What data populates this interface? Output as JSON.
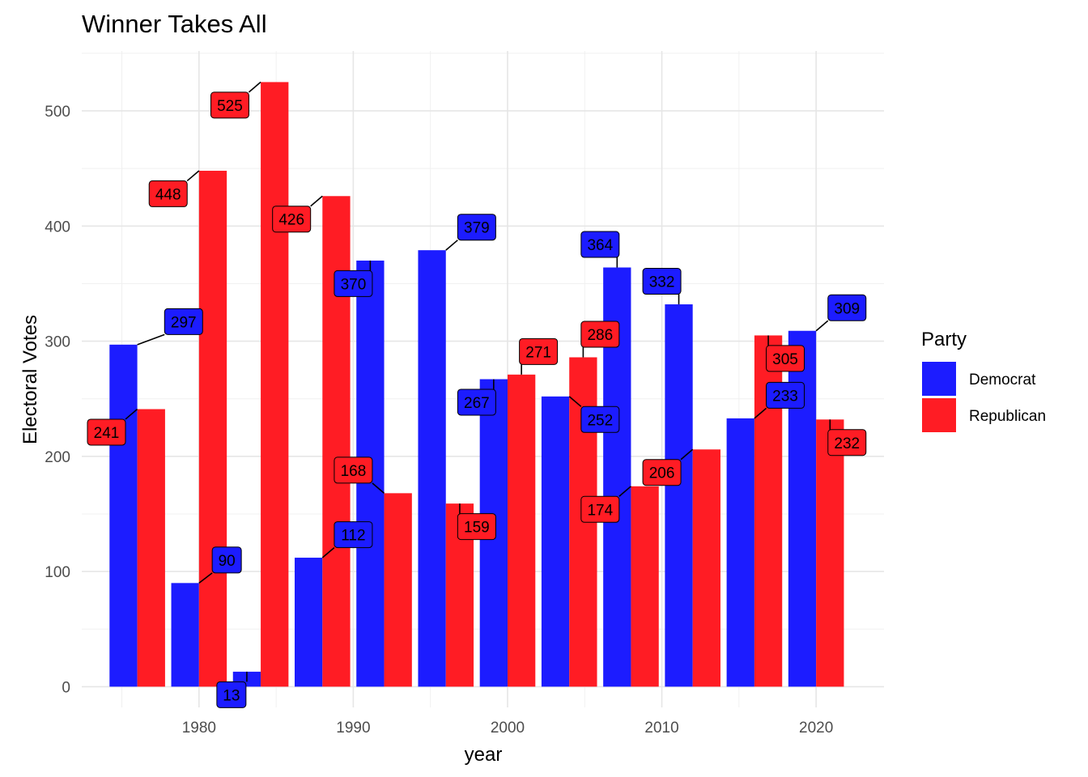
{
  "chart_data": {
    "type": "bar",
    "title": "Winner Takes All",
    "xlabel": "year",
    "ylabel": "Electoral Votes",
    "xlim": [
      1972.4,
      2024.4
    ],
    "ylim": [
      -18,
      552
    ],
    "x_ticks": [
      1980,
      1990,
      2000,
      2010,
      2020
    ],
    "y_ticks": [
      0,
      100,
      200,
      300,
      400,
      500
    ],
    "grid": true,
    "legend": {
      "title": "Party",
      "position": "right"
    },
    "categories": [
      1976,
      1980,
      1984,
      1988,
      1992,
      1996,
      2000,
      2004,
      2008,
      2012,
      2016,
      2020
    ],
    "series": [
      {
        "name": "Democrat",
        "color": "#1c1cff",
        "values": [
          297,
          90,
          13,
          112,
          370,
          379,
          267,
          252,
          364,
          332,
          233,
          309
        ]
      },
      {
        "name": "Republican",
        "color": "#ff1c24",
        "values": [
          241,
          448,
          525,
          426,
          168,
          159,
          271,
          286,
          174,
          206,
          305,
          232
        ]
      }
    ],
    "data_labels": [
      {
        "series": "Democrat",
        "x": 1976,
        "text": "297",
        "label_x": 1979.0,
        "label_y": 317
      },
      {
        "series": "Democrat",
        "x": 1980,
        "text": "90",
        "label_x": 1981.8,
        "label_y": 110
      },
      {
        "series": "Democrat",
        "x": 1984,
        "text": "13",
        "label_x": 1982.1,
        "label_y": -7
      },
      {
        "series": "Democrat",
        "x": 1988,
        "text": "112",
        "label_x": 1990.0,
        "label_y": 132
      },
      {
        "series": "Democrat",
        "x": 1992,
        "text": "370",
        "label_x": 1990.0,
        "label_y": 350
      },
      {
        "series": "Democrat",
        "x": 1996,
        "text": "379",
        "label_x": 1998.0,
        "label_y": 399
      },
      {
        "series": "Democrat",
        "x": 2000,
        "text": "267",
        "label_x": 1998.0,
        "label_y": 247
      },
      {
        "series": "Democrat",
        "x": 2004,
        "text": "252",
        "label_x": 2006.0,
        "label_y": 232
      },
      {
        "series": "Democrat",
        "x": 2008,
        "text": "364",
        "label_x": 2006.0,
        "label_y": 384
      },
      {
        "series": "Democrat",
        "x": 2012,
        "text": "332",
        "label_x": 2010.0,
        "label_y": 352
      },
      {
        "series": "Democrat",
        "x": 2016,
        "text": "233",
        "label_x": 2018.0,
        "label_y": 253
      },
      {
        "series": "Democrat",
        "x": 2020,
        "text": "309",
        "label_x": 2022.0,
        "label_y": 329
      },
      {
        "series": "Republican",
        "x": 1976,
        "text": "241",
        "label_x": 1974.0,
        "label_y": 221
      },
      {
        "series": "Republican",
        "x": 1980,
        "text": "448",
        "label_x": 1978.0,
        "label_y": 428
      },
      {
        "series": "Republican",
        "x": 1984,
        "text": "525",
        "label_x": 1982.0,
        "label_y": 505
      },
      {
        "series": "Republican",
        "x": 1988,
        "text": "426",
        "label_x": 1986.0,
        "label_y": 406
      },
      {
        "series": "Republican",
        "x": 1992,
        "text": "168",
        "label_x": 1990.0,
        "label_y": 188
      },
      {
        "series": "Republican",
        "x": 1996,
        "text": "159",
        "label_x": 1998.0,
        "label_y": 139
      },
      {
        "series": "Republican",
        "x": 2000,
        "text": "271",
        "label_x": 2002.0,
        "label_y": 291
      },
      {
        "series": "Republican",
        "x": 2004,
        "text": "286",
        "label_x": 2006.0,
        "label_y": 306
      },
      {
        "series": "Republican",
        "x": 2008,
        "text": "174",
        "label_x": 2006.0,
        "label_y": 154
      },
      {
        "series": "Republican",
        "x": 2012,
        "text": "206",
        "label_x": 2010.0,
        "label_y": 186
      },
      {
        "series": "Republican",
        "x": 2016,
        "text": "305",
        "label_x": 2018.0,
        "label_y": 285
      },
      {
        "series": "Republican",
        "x": 2020,
        "text": "232",
        "label_x": 2022.0,
        "label_y": 212
      }
    ]
  }
}
